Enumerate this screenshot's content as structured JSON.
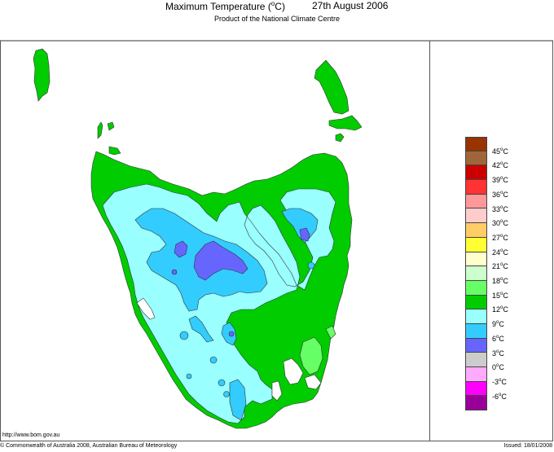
{
  "header": {
    "title": "Maximum Temperature (°C)",
    "title_prefix": "Maximum Temperature (",
    "title_unit_sup": "o",
    "title_suffix": "C)",
    "date": "27th August 2006",
    "subtitle": "Product of the National Climate Centre"
  },
  "map": {
    "region": "Tasmania",
    "variable": "Maximum Temperature",
    "dominant_bands": [
      "9-12°C",
      "12-15°C",
      "6-9°C",
      "3-6°C",
      "15-18°C"
    ]
  },
  "legend": {
    "colors": [
      "#993300",
      "#a0663a",
      "#cc0000",
      "#ff3333",
      "#ff9999",
      "#ffcccc",
      "#ffcc66",
      "#ffff33",
      "#ffffcc",
      "#ccffcc",
      "#66ff66",
      "#00cc00",
      "#99ffff",
      "#33ccff",
      "#6666ff",
      "#cccccc",
      "#ffaaff",
      "#ff00ff",
      "#990099"
    ],
    "labels": [
      "45",
      "42",
      "39",
      "36",
      "33",
      "30",
      "27",
      "24",
      "21",
      "18",
      "15",
      "12",
      "9",
      "6",
      "3",
      "0",
      "-3",
      "-6"
    ],
    "unit_sup": "o",
    "unit": "C"
  },
  "footer": {
    "url": "http://www.bom.gov.au",
    "copyright": "© Commonwealth of Australia 2008, Australian Bureau of Meteorology",
    "issued": "Issued: 18/01/2008"
  },
  "chart_data": {
    "type": "heatmap",
    "title": "Maximum Temperature (°C)  27th August 2006",
    "subtitle": "Product of the National Climate Centre",
    "region": "Tasmania",
    "legend_bins_celsius": [
      {
        "range": "<-6",
        "color": "#990099"
      },
      {
        "range": "-6 to -3",
        "color": "#ff00ff"
      },
      {
        "range": "-3 to 0",
        "color": "#ffaaff"
      },
      {
        "range": "0 to 3",
        "color": "#cccccc"
      },
      {
        "range": "3 to 6",
        "color": "#6666ff"
      },
      {
        "range": "6 to 9",
        "color": "#33ccff"
      },
      {
        "range": "9 to 12",
        "color": "#99ffff"
      },
      {
        "range": "12 to 15",
        "color": "#00cc00"
      },
      {
        "range": "15 to 18",
        "color": "#66ff66"
      },
      {
        "range": "18 to 21",
        "color": "#ccffcc"
      },
      {
        "range": "21 to 24",
        "color": "#ffffcc"
      },
      {
        "range": "24 to 27",
        "color": "#ffff33"
      },
      {
        "range": "27 to 30",
        "color": "#ffcc66"
      },
      {
        "range": "30 to 33",
        "color": "#ffcccc"
      },
      {
        "range": "33 to 36",
        "color": "#ff9999"
      },
      {
        "range": "36 to 39",
        "color": "#ff3333"
      },
      {
        "range": "39 to 42",
        "color": "#cc0000"
      },
      {
        "range": "42 to 45",
        "color": "#a0663a"
      },
      {
        "range": ">45",
        "color": "#993300"
      }
    ],
    "observed_ranges": {
      "coastal_north_east_islands": "12-15",
      "west_and_south_west": "9-12",
      "central_highlands": "3-9",
      "south_east_near_hobart": "15-18"
    }
  }
}
